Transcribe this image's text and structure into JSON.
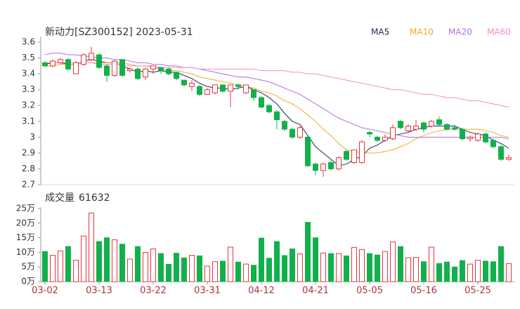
{
  "chart_data": [
    {
      "type": "candlestick",
      "title": "新动力[SZ300152] 2023-05-31",
      "categories": [
        "03-02",
        null,
        null,
        null,
        null,
        null,
        null,
        "03-13",
        null,
        null,
        null,
        null,
        null,
        null,
        "03-22",
        null,
        null,
        null,
        null,
        null,
        null,
        "03-31",
        null,
        null,
        null,
        null,
        null,
        null,
        "04-12",
        null,
        null,
        null,
        null,
        null,
        null,
        "04-21",
        null,
        null,
        null,
        null,
        null,
        null,
        "05-05",
        null,
        null,
        null,
        null,
        null,
        null,
        "05-16",
        null,
        null,
        null,
        null,
        null,
        null,
        "05-25",
        null,
        null,
        null,
        null
      ],
      "open": [
        3.47,
        3.45,
        3.47,
        3.49,
        3.4,
        3.46,
        3.49,
        3.52,
        3.45,
        3.39,
        3.49,
        3.42,
        3.43,
        3.38,
        3.43,
        3.44,
        3.43,
        3.41,
        3.36,
        3.32,
        3.32,
        3.27,
        3.28,
        3.33,
        3.29,
        3.33,
        3.28,
        3.3,
        3.25,
        3.2,
        3.16,
        3.1,
        3.05,
        3.0,
        3.0,
        2.83,
        2.79,
        2.84,
        2.8,
        2.91,
        2.84,
        2.84,
        3.03,
        3.0,
        2.98,
        2.99,
        3.1,
        3.04,
        3.05,
        3.09,
        3.07,
        3.11,
        3.08,
        3.06,
        3.05,
        2.99,
        2.98,
        3.02,
        2.98,
        2.94,
        2.86
      ],
      "high": [
        3.48,
        3.49,
        3.5,
        3.5,
        3.48,
        3.53,
        3.57,
        3.53,
        3.46,
        3.49,
        3.49,
        3.44,
        3.44,
        3.44,
        3.45,
        3.44,
        3.44,
        3.41,
        3.36,
        3.36,
        3.33,
        3.31,
        3.33,
        3.33,
        3.33,
        3.34,
        3.33,
        3.3,
        3.26,
        3.21,
        3.17,
        3.11,
        3.06,
        3.07,
        3.01,
        2.84,
        2.84,
        2.85,
        2.88,
        2.92,
        2.92,
        2.98,
        3.04,
        3.01,
        3.02,
        3.08,
        3.11,
        3.08,
        3.11,
        3.1,
        3.11,
        3.13,
        3.09,
        3.08,
        3.06,
        3.01,
        3.03,
        3.03,
        2.99,
        2.95,
        2.89
      ],
      "low": [
        3.44,
        3.44,
        3.46,
        3.42,
        3.4,
        3.45,
        3.48,
        3.43,
        3.35,
        3.38,
        3.38,
        3.41,
        3.36,
        3.36,
        3.4,
        3.4,
        3.39,
        3.36,
        3.32,
        3.29,
        3.26,
        3.27,
        3.27,
        3.28,
        3.19,
        3.3,
        3.27,
        3.23,
        3.18,
        3.15,
        3.05,
        3.04,
        2.99,
        2.99,
        2.81,
        2.76,
        2.75,
        2.79,
        2.79,
        2.85,
        2.83,
        2.83,
        3.0,
        2.97,
        2.97,
        2.98,
        3.05,
        3.03,
        3.04,
        3.03,
        3.06,
        3.07,
        3.04,
        3.04,
        2.98,
        2.97,
        2.97,
        2.96,
        2.93,
        2.85,
        2.85
      ],
      "close": [
        3.45,
        3.48,
        3.49,
        3.43,
        3.47,
        3.52,
        3.53,
        3.44,
        3.39,
        3.48,
        3.39,
        3.43,
        3.37,
        3.43,
        3.45,
        3.42,
        3.4,
        3.37,
        3.33,
        3.34,
        3.27,
        3.3,
        3.33,
        3.29,
        3.33,
        3.32,
        3.33,
        3.25,
        3.19,
        3.16,
        3.11,
        3.05,
        3.0,
        3.06,
        2.82,
        2.79,
        2.83,
        2.8,
        2.87,
        2.86,
        2.92,
        2.97,
        3.02,
        2.98,
        3.0,
        3.06,
        3.06,
        3.07,
        3.07,
        3.05,
        3.1,
        3.08,
        3.05,
        3.05,
        2.99,
        3.0,
        3.02,
        2.97,
        2.94,
        2.86,
        2.87
      ],
      "up_color": "#e8343e",
      "down_color": "#12b04c",
      "series": [
        {
          "name": "MA5",
          "color": "#1f2a5c",
          "values": [
            3.46,
            3.47,
            3.47,
            3.46,
            3.46,
            3.48,
            3.49,
            3.48,
            3.47,
            3.47,
            3.45,
            3.43,
            3.41,
            3.42,
            3.41,
            3.42,
            3.41,
            3.41,
            3.39,
            3.37,
            3.34,
            3.32,
            3.31,
            3.31,
            3.3,
            3.31,
            3.32,
            3.3,
            3.28,
            3.25,
            3.21,
            3.15,
            3.1,
            3.08,
            3.01,
            2.94,
            2.9,
            2.86,
            2.82,
            2.83,
            2.86,
            2.88,
            2.93,
            2.95,
            2.98,
            3.01,
            3.02,
            3.03,
            3.05,
            3.06,
            3.07,
            3.07,
            3.07,
            3.07,
            3.05,
            3.03,
            3.02,
            3.01,
            2.98,
            2.96,
            2.93
          ]
        },
        {
          "name": "MA10",
          "color": "#f5a623",
          "values": [
            3.45,
            3.45,
            3.46,
            3.46,
            3.46,
            3.47,
            3.47,
            3.47,
            3.47,
            3.47,
            3.47,
            3.46,
            3.45,
            3.45,
            3.44,
            3.43,
            3.42,
            3.42,
            3.41,
            3.4,
            3.38,
            3.37,
            3.36,
            3.35,
            3.34,
            3.33,
            3.32,
            3.31,
            3.29,
            3.28,
            3.26,
            3.23,
            3.21,
            3.18,
            3.14,
            3.1,
            3.05,
            3.01,
            2.96,
            2.92,
            2.91,
            2.9,
            2.9,
            2.9,
            2.91,
            2.92,
            2.94,
            2.96,
            2.99,
            3.01,
            3.03,
            3.04,
            3.05,
            3.05,
            3.05,
            3.05,
            3.05,
            3.04,
            3.03,
            3.01,
            3.0
          ]
        },
        {
          "name": "MA20",
          "color": "#b36ee0",
          "values": [
            3.52,
            3.53,
            3.53,
            3.52,
            3.52,
            3.51,
            3.51,
            3.5,
            3.5,
            3.49,
            3.49,
            3.48,
            3.47,
            3.47,
            3.46,
            3.46,
            3.45,
            3.45,
            3.44,
            3.44,
            3.43,
            3.42,
            3.41,
            3.4,
            3.39,
            3.38,
            3.38,
            3.37,
            3.36,
            3.35,
            3.33,
            3.31,
            3.29,
            3.27,
            3.24,
            3.21,
            3.18,
            3.15,
            3.12,
            3.1,
            3.08,
            3.06,
            3.05,
            3.04,
            3.03,
            3.02,
            3.01,
            3.0,
            3.0,
            3.0,
            3.0,
            3.0,
            3.0,
            3.0,
            3.0,
            3.0,
            3.0,
            3.0,
            3.0,
            3.0,
            2.99
          ]
        },
        {
          "name": "MA60",
          "color": "#f28bd2",
          "values": [
            3.47,
            3.47,
            3.47,
            3.47,
            3.47,
            3.47,
            3.47,
            3.46,
            3.46,
            3.46,
            3.46,
            3.45,
            3.45,
            3.45,
            3.45,
            3.44,
            3.44,
            3.44,
            3.44,
            3.44,
            3.43,
            3.43,
            3.43,
            3.43,
            3.43,
            3.43,
            3.43,
            3.43,
            3.42,
            3.42,
            3.42,
            3.42,
            3.41,
            3.41,
            3.4,
            3.4,
            3.39,
            3.38,
            3.37,
            3.36,
            3.35,
            3.34,
            3.33,
            3.32,
            3.31,
            3.3,
            3.3,
            3.29,
            3.28,
            3.27,
            3.27,
            3.26,
            3.25,
            3.25,
            3.24,
            3.23,
            3.23,
            3.22,
            3.21,
            3.2,
            3.19
          ]
        }
      ],
      "ylim": [
        2.7,
        3.6
      ],
      "yticks": [
        2.7,
        2.8,
        2.9,
        3,
        3.1,
        3.2,
        3.3,
        3.4,
        3.5,
        3.6
      ],
      "grid": false
    },
    {
      "type": "bar",
      "title": "成交量",
      "values": [
        103000,
        90000,
        105000,
        120000,
        73000,
        156000,
        235000,
        137000,
        150000,
        143000,
        128000,
        77000,
        120000,
        100000,
        112000,
        96000,
        59000,
        97000,
        81000,
        90000,
        88000,
        53000,
        68000,
        70000,
        118000,
        67000,
        60000,
        56000,
        149000,
        80000,
        137000,
        89000,
        112000,
        95000,
        203000,
        150000,
        98000,
        96000,
        96000,
        88000,
        117000,
        110000,
        96000,
        91000,
        103000,
        136000,
        120000,
        82000,
        83000,
        68000,
        118000,
        62000,
        67000,
        50000,
        72000,
        60000,
        73000,
        70000,
        68000,
        120000,
        61632
      ],
      "ylim": [
        0,
        250000
      ],
      "yticks": [
        {
          "value": 0,
          "label": "0万"
        },
        {
          "value": 50000,
          "label": "5万"
        },
        {
          "value": 100000,
          "label": "10万"
        },
        {
          "value": 150000,
          "label": "15万"
        },
        {
          "value": 200000,
          "label": "20万"
        },
        {
          "value": 250000,
          "label": "25万"
        }
      ]
    }
  ]
}
